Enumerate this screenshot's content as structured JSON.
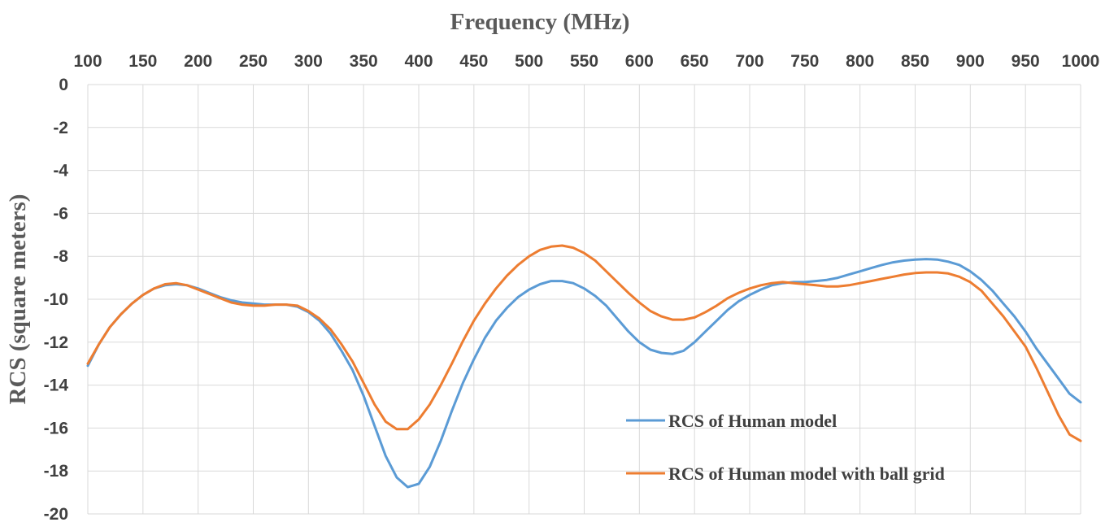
{
  "chart_data": {
    "type": "line",
    "xlabel": "Frequency (MHz)",
    "ylabel": "RCS (square meters)",
    "xlim": [
      100,
      1000
    ],
    "ylim": [
      -20,
      0
    ],
    "x_ticks": [
      100,
      150,
      200,
      250,
      300,
      350,
      400,
      450,
      500,
      550,
      600,
      650,
      700,
      750,
      800,
      850,
      900,
      950,
      1000
    ],
    "y_ticks": [
      0,
      -2,
      -4,
      -6,
      -8,
      -10,
      -12,
      -14,
      -16,
      -18,
      -20
    ],
    "x_axis_position": "top",
    "grid": true,
    "legend_position": "bottom-right",
    "series": [
      {
        "name": "RCS of Human model",
        "color": "#5b9bd5",
        "points": [
          [
            100,
            -13.1
          ],
          [
            110,
            -12.1
          ],
          [
            120,
            -11.3
          ],
          [
            130,
            -10.7
          ],
          [
            140,
            -10.2
          ],
          [
            150,
            -9.8
          ],
          [
            160,
            -9.5
          ],
          [
            170,
            -9.35
          ],
          [
            180,
            -9.3
          ],
          [
            190,
            -9.35
          ],
          [
            200,
            -9.5
          ],
          [
            210,
            -9.7
          ],
          [
            220,
            -9.9
          ],
          [
            230,
            -10.05
          ],
          [
            240,
            -10.15
          ],
          [
            250,
            -10.2
          ],
          [
            260,
            -10.25
          ],
          [
            270,
            -10.25
          ],
          [
            280,
            -10.25
          ],
          [
            290,
            -10.35
          ],
          [
            300,
            -10.6
          ],
          [
            310,
            -11.0
          ],
          [
            320,
            -11.6
          ],
          [
            330,
            -12.4
          ],
          [
            340,
            -13.3
          ],
          [
            350,
            -14.5
          ],
          [
            360,
            -15.9
          ],
          [
            370,
            -17.3
          ],
          [
            380,
            -18.3
          ],
          [
            390,
            -18.75
          ],
          [
            400,
            -18.6
          ],
          [
            410,
            -17.8
          ],
          [
            420,
            -16.6
          ],
          [
            430,
            -15.2
          ],
          [
            440,
            -13.9
          ],
          [
            450,
            -12.8
          ],
          [
            460,
            -11.8
          ],
          [
            470,
            -11.0
          ],
          [
            480,
            -10.4
          ],
          [
            490,
            -9.9
          ],
          [
            500,
            -9.55
          ],
          [
            510,
            -9.3
          ],
          [
            520,
            -9.15
          ],
          [
            530,
            -9.15
          ],
          [
            540,
            -9.25
          ],
          [
            550,
            -9.5
          ],
          [
            560,
            -9.85
          ],
          [
            570,
            -10.3
          ],
          [
            580,
            -10.9
          ],
          [
            590,
            -11.5
          ],
          [
            600,
            -12.0
          ],
          [
            610,
            -12.35
          ],
          [
            620,
            -12.5
          ],
          [
            630,
            -12.55
          ],
          [
            640,
            -12.4
          ],
          [
            650,
            -12.0
          ],
          [
            660,
            -11.5
          ],
          [
            670,
            -11.0
          ],
          [
            680,
            -10.5
          ],
          [
            690,
            -10.1
          ],
          [
            700,
            -9.8
          ],
          [
            710,
            -9.55
          ],
          [
            720,
            -9.35
          ],
          [
            730,
            -9.25
          ],
          [
            740,
            -9.2
          ],
          [
            750,
            -9.2
          ],
          [
            760,
            -9.15
          ],
          [
            770,
            -9.1
          ],
          [
            780,
            -9.0
          ],
          [
            790,
            -8.85
          ],
          [
            800,
            -8.7
          ],
          [
            810,
            -8.55
          ],
          [
            820,
            -8.4
          ],
          [
            830,
            -8.28
          ],
          [
            840,
            -8.2
          ],
          [
            850,
            -8.15
          ],
          [
            860,
            -8.13
          ],
          [
            870,
            -8.15
          ],
          [
            880,
            -8.25
          ],
          [
            890,
            -8.4
          ],
          [
            900,
            -8.7
          ],
          [
            910,
            -9.1
          ],
          [
            920,
            -9.6
          ],
          [
            930,
            -10.2
          ],
          [
            940,
            -10.8
          ],
          [
            950,
            -11.5
          ],
          [
            960,
            -12.3
          ],
          [
            970,
            -13.0
          ],
          [
            980,
            -13.7
          ],
          [
            990,
            -14.4
          ],
          [
            1000,
            -14.8
          ]
        ]
      },
      {
        "name": "RCS of Human model with ball grid",
        "color": "#ed7d31",
        "points": [
          [
            100,
            -13.0
          ],
          [
            110,
            -12.1
          ],
          [
            120,
            -11.3
          ],
          [
            130,
            -10.7
          ],
          [
            140,
            -10.2
          ],
          [
            150,
            -9.8
          ],
          [
            160,
            -9.5
          ],
          [
            170,
            -9.3
          ],
          [
            180,
            -9.25
          ],
          [
            190,
            -9.35
          ],
          [
            200,
            -9.55
          ],
          [
            210,
            -9.75
          ],
          [
            220,
            -9.95
          ],
          [
            230,
            -10.15
          ],
          [
            240,
            -10.25
          ],
          [
            250,
            -10.3
          ],
          [
            260,
            -10.3
          ],
          [
            270,
            -10.25
          ],
          [
            280,
            -10.25
          ],
          [
            290,
            -10.3
          ],
          [
            300,
            -10.55
          ],
          [
            310,
            -10.9
          ],
          [
            320,
            -11.4
          ],
          [
            330,
            -12.1
          ],
          [
            340,
            -12.9
          ],
          [
            350,
            -13.9
          ],
          [
            360,
            -14.9
          ],
          [
            370,
            -15.7
          ],
          [
            380,
            -16.05
          ],
          [
            390,
            -16.05
          ],
          [
            400,
            -15.6
          ],
          [
            410,
            -14.9
          ],
          [
            420,
            -14.0
          ],
          [
            430,
            -13.0
          ],
          [
            440,
            -11.95
          ],
          [
            450,
            -11.0
          ],
          [
            460,
            -10.2
          ],
          [
            470,
            -9.5
          ],
          [
            480,
            -8.9
          ],
          [
            490,
            -8.4
          ],
          [
            500,
            -8.0
          ],
          [
            510,
            -7.7
          ],
          [
            520,
            -7.55
          ],
          [
            530,
            -7.5
          ],
          [
            540,
            -7.6
          ],
          [
            550,
            -7.85
          ],
          [
            560,
            -8.2
          ],
          [
            570,
            -8.7
          ],
          [
            580,
            -9.2
          ],
          [
            590,
            -9.7
          ],
          [
            600,
            -10.15
          ],
          [
            610,
            -10.55
          ],
          [
            620,
            -10.8
          ],
          [
            630,
            -10.95
          ],
          [
            640,
            -10.95
          ],
          [
            650,
            -10.85
          ],
          [
            660,
            -10.6
          ],
          [
            670,
            -10.3
          ],
          [
            680,
            -9.95
          ],
          [
            690,
            -9.7
          ],
          [
            700,
            -9.5
          ],
          [
            710,
            -9.35
          ],
          [
            720,
            -9.25
          ],
          [
            730,
            -9.2
          ],
          [
            740,
            -9.25
          ],
          [
            750,
            -9.3
          ],
          [
            760,
            -9.35
          ],
          [
            770,
            -9.4
          ],
          [
            780,
            -9.4
          ],
          [
            790,
            -9.35
          ],
          [
            800,
            -9.25
          ],
          [
            810,
            -9.15
          ],
          [
            820,
            -9.05
          ],
          [
            830,
            -8.95
          ],
          [
            840,
            -8.85
          ],
          [
            850,
            -8.78
          ],
          [
            860,
            -8.75
          ],
          [
            870,
            -8.75
          ],
          [
            880,
            -8.8
          ],
          [
            890,
            -8.95
          ],
          [
            900,
            -9.2
          ],
          [
            910,
            -9.6
          ],
          [
            920,
            -10.2
          ],
          [
            930,
            -10.8
          ],
          [
            940,
            -11.5
          ],
          [
            950,
            -12.2
          ],
          [
            960,
            -13.2
          ],
          [
            970,
            -14.3
          ],
          [
            980,
            -15.4
          ],
          [
            990,
            -16.3
          ],
          [
            1000,
            -16.6
          ]
        ]
      }
    ]
  }
}
